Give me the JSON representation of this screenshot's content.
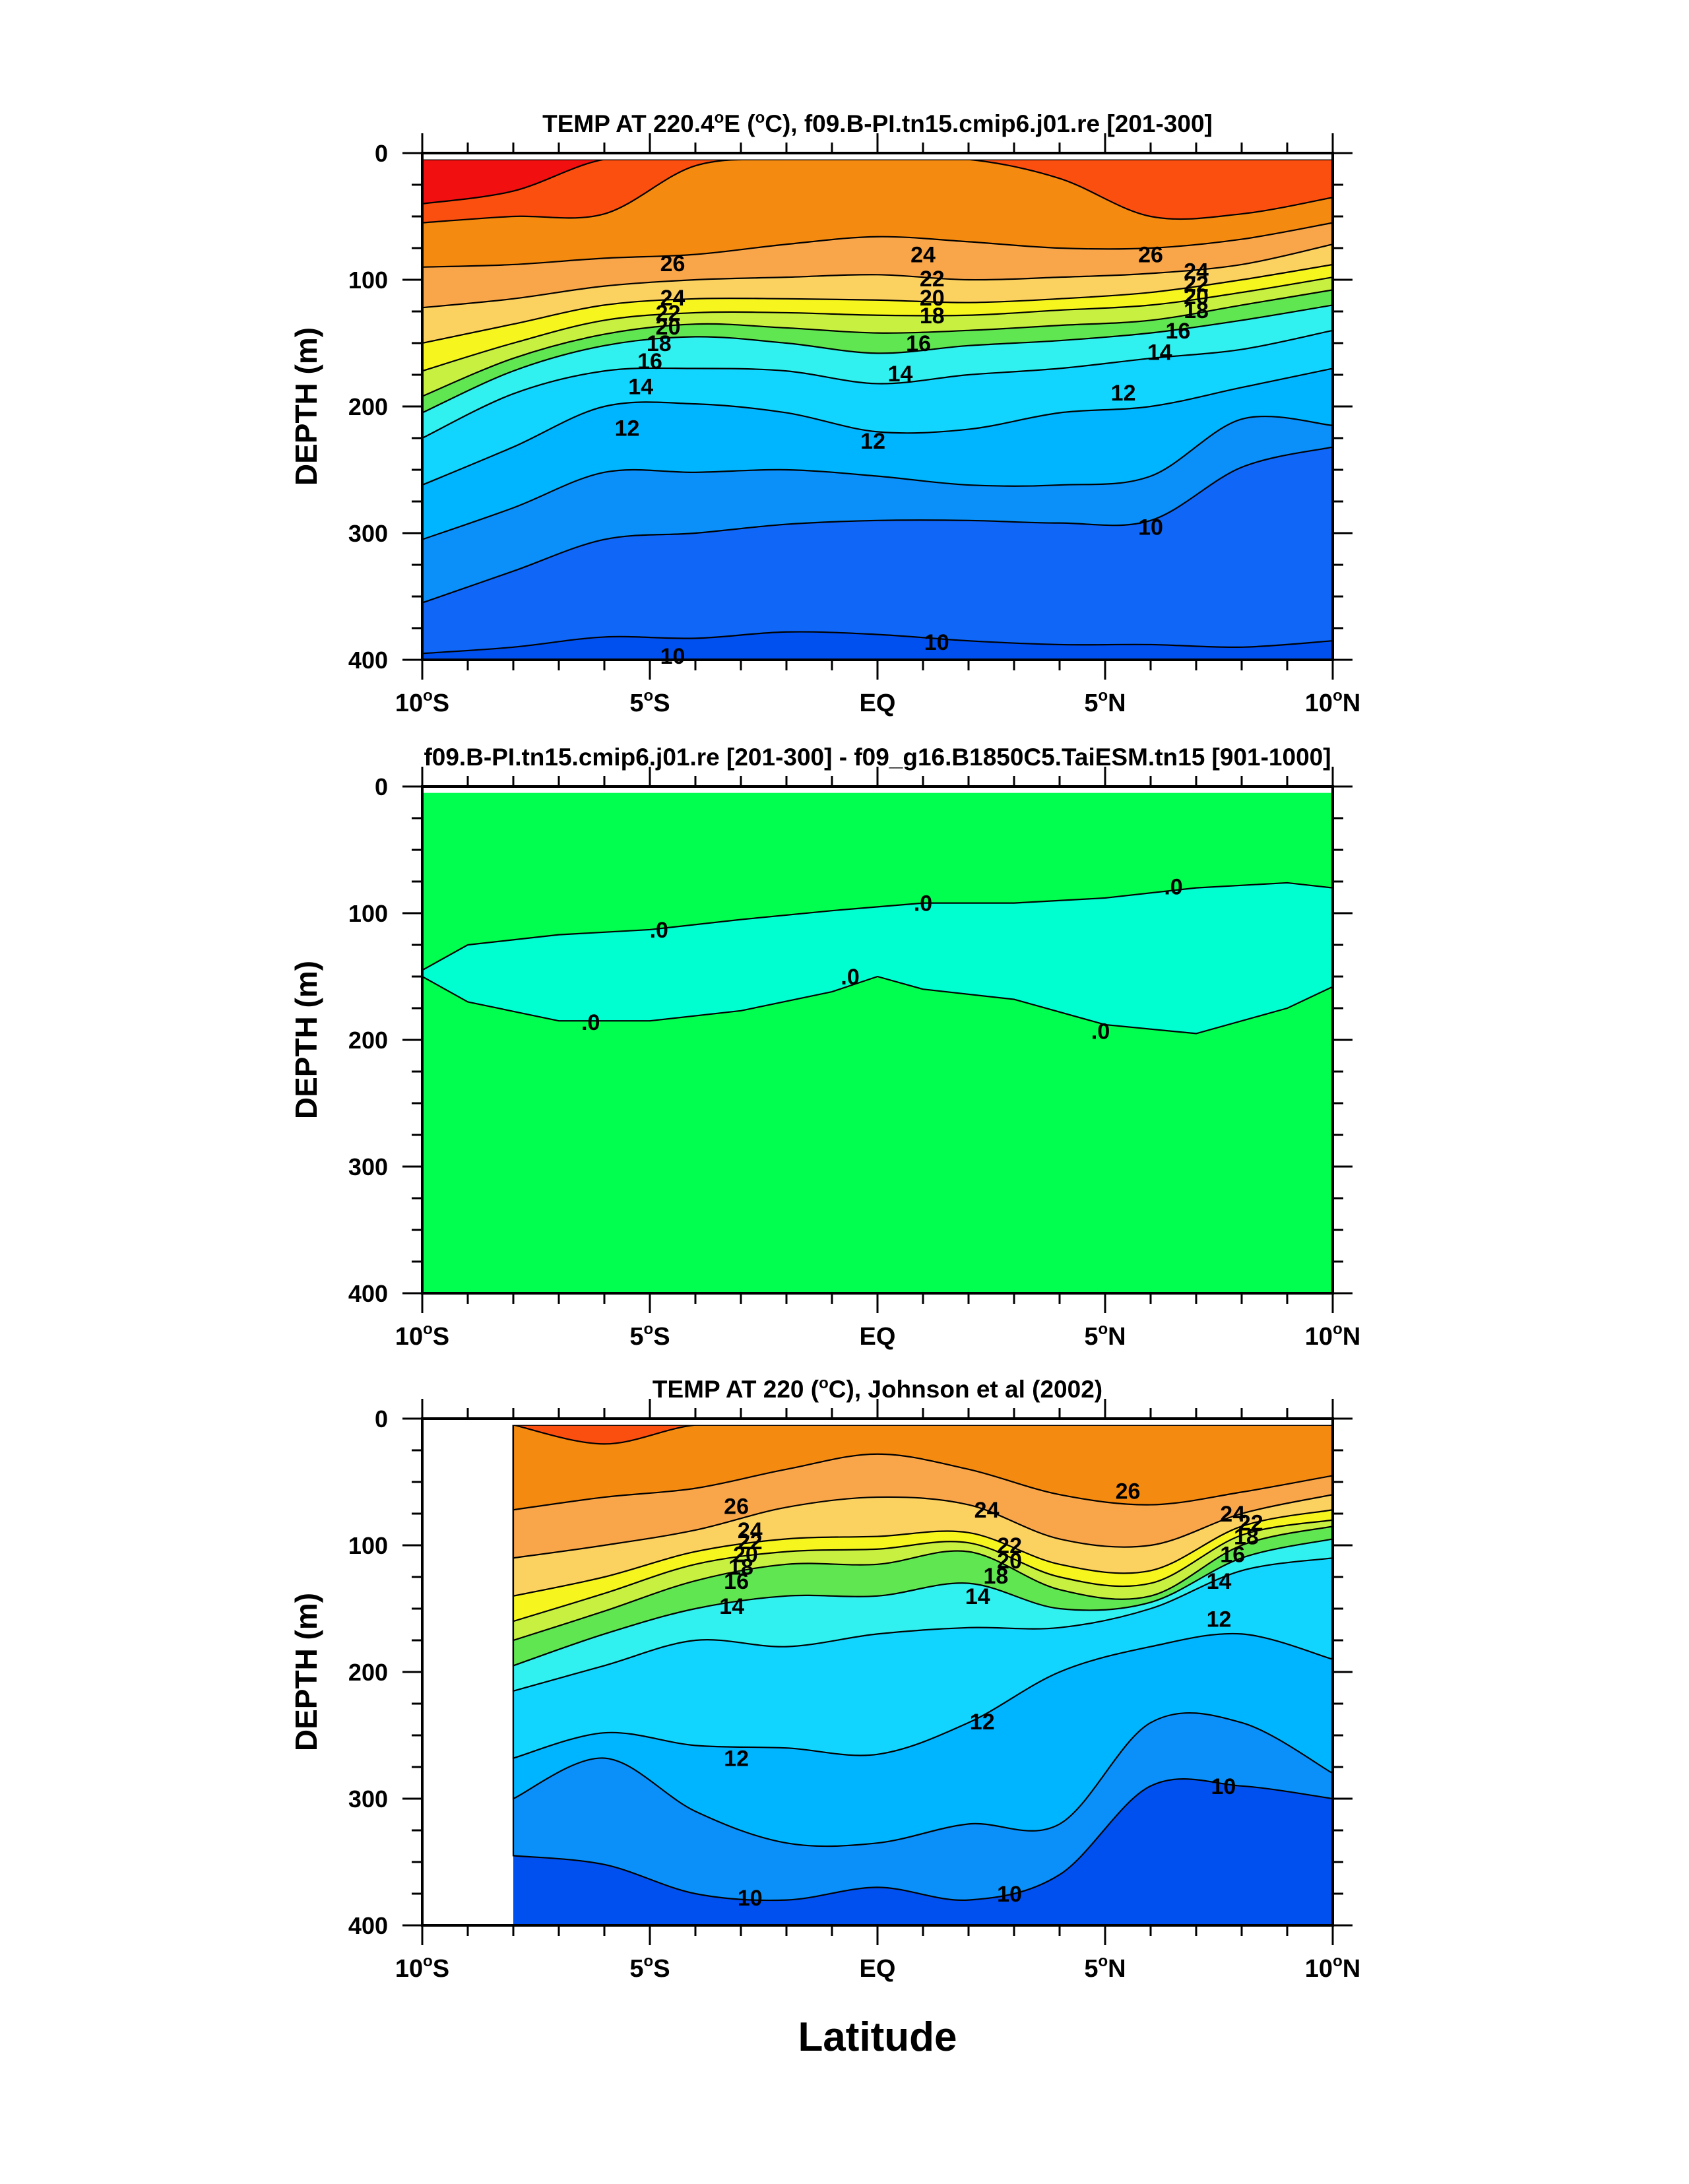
{
  "figure": {
    "xlabel": "Latitude",
    "ylabel": "DEPTH (m)"
  },
  "chart_data": [
    {
      "type": "contour",
      "title": "TEMP AT 220.4°E (°C), f09.B-PI.tn15.cmip6.j01.re [201-300]",
      "title_parts": {
        "pre": "TEMP AT 220.4",
        "deg": "o",
        "mid1": "E (",
        "deg2": "o",
        "post": "C), f09.B-PI.tn15.cmip6.j01.re [201-300]"
      },
      "xlabel": "",
      "ylabel": "DEPTH (m)",
      "xlim": [
        -10,
        10
      ],
      "ylim": [
        400,
        0
      ],
      "x_ticks": [
        -10,
        -5,
        0,
        5,
        10
      ],
      "x_tick_labels": [
        {
          "num": "10",
          "deg": "o",
          "hem": "S"
        },
        {
          "num": "5",
          "deg": "o",
          "hem": "S"
        },
        {
          "num": "EQ",
          "deg": "",
          "hem": ""
        },
        {
          "num": "5",
          "deg": "o",
          "hem": "N"
        },
        {
          "num": "10",
          "deg": "o",
          "hem": "N"
        }
      ],
      "y_ticks": [
        0,
        100,
        200,
        300,
        400
      ],
      "y_tick_labels": [
        "0",
        "100",
        "200",
        "300",
        "400"
      ],
      "x_data_range": [
        -10,
        10
      ],
      "fill_levels": [
        {
          "color": "#0050f0",
          "depth_top": [
            395,
            390,
            382,
            383,
            378,
            380,
            385,
            388,
            388,
            390,
            385
          ]
        },
        {
          "color": "#0f66f7",
          "depth_top": [
            355,
            330,
            305,
            300,
            293,
            290,
            290,
            292,
            290,
            248,
            232
          ]
        },
        {
          "color": "#0a90f8",
          "depth_top": [
            305,
            280,
            252,
            252,
            250,
            255,
            262,
            262,
            255,
            210,
            215
          ]
        },
        {
          "color": "#00b5ff",
          "depth_top": [
            262,
            232,
            200,
            198,
            205,
            220,
            218,
            205,
            200,
            185,
            170
          ]
        },
        {
          "color": "#11d5ff",
          "depth_top": [
            225,
            190,
            172,
            170,
            172,
            182,
            175,
            170,
            162,
            155,
            140
          ]
        },
        {
          "color": "#30f0f0",
          "depth_top": [
            205,
            172,
            152,
            145,
            150,
            158,
            152,
            148,
            142,
            132,
            120
          ]
        },
        {
          "color": "#60e650",
          "depth_top": [
            192,
            162,
            143,
            135,
            138,
            142,
            140,
            136,
            132,
            120,
            108
          ]
        },
        {
          "color": "#c8f040",
          "depth_top": [
            172,
            150,
            132,
            126,
            126,
            128,
            128,
            124,
            120,
            110,
            98
          ]
        },
        {
          "color": "#f6f51e",
          "depth_top": [
            150,
            135,
            120,
            115,
            115,
            116,
            118,
            115,
            110,
            100,
            88
          ]
        },
        {
          "color": "#fbd160",
          "depth_top": [
            122,
            115,
            105,
            100,
            98,
            96,
            100,
            98,
            95,
            88,
            72
          ]
        },
        {
          "color": "#f9a64a",
          "depth_top": [
            90,
            88,
            83,
            80,
            72,
            66,
            70,
            75,
            75,
            68,
            55
          ]
        },
        {
          "color": "#f58a10",
          "depth_top": [
            55,
            50,
            48,
            10,
            5,
            5,
            5,
            20,
            50,
            48,
            35
          ]
        },
        {
          "color": "#fb4f10",
          "depth_top": [
            40,
            30,
            5,
            5,
            5,
            5,
            5,
            5,
            5,
            5,
            5
          ]
        },
        {
          "color": "#f20f0f",
          "depth_top": [
            5,
            5,
            5,
            5,
            5,
            5,
            5,
            5,
            5,
            5,
            5
          ]
        }
      ],
      "contour_labels": [
        {
          "text": "26",
          "x": -4.5,
          "y": 87
        },
        {
          "text": "24",
          "x": -4.5,
          "y": 114
        },
        {
          "text": "22",
          "x": -4.6,
          "y": 126
        },
        {
          "text": "20",
          "x": -4.6,
          "y": 137
        },
        {
          "text": "18",
          "x": -4.8,
          "y": 150
        },
        {
          "text": "16",
          "x": -5.0,
          "y": 164
        },
        {
          "text": "14",
          "x": -5.2,
          "y": 184
        },
        {
          "text": "12",
          "x": -5.5,
          "y": 217
        },
        {
          "text": "24",
          "x": 1.0,
          "y": 80
        },
        {
          "text": "22",
          "x": 1.2,
          "y": 99
        },
        {
          "text": "20",
          "x": 1.2,
          "y": 114
        },
        {
          "text": "18",
          "x": 1.2,
          "y": 128
        },
        {
          "text": "16",
          "x": 0.9,
          "y": 150
        },
        {
          "text": "14",
          "x": 0.5,
          "y": 174
        },
        {
          "text": "12",
          "x": -0.1,
          "y": 227
        },
        {
          "text": "26",
          "x": 6.0,
          "y": 80
        },
        {
          "text": "24",
          "x": 7.0,
          "y": 93
        },
        {
          "text": "22",
          "x": 7.0,
          "y": 103
        },
        {
          "text": "20",
          "x": 7.0,
          "y": 113
        },
        {
          "text": "18",
          "x": 7.0,
          "y": 124
        },
        {
          "text": "16",
          "x": 6.6,
          "y": 140
        },
        {
          "text": "14",
          "x": 6.2,
          "y": 157
        },
        {
          "text": "12",
          "x": 5.4,
          "y": 189
        },
        {
          "text": "10",
          "x": 6.0,
          "y": 295
        },
        {
          "text": "10",
          "x": 1.3,
          "y": 386
        },
        {
          "text": "10",
          "x": -4.5,
          "y": 397
        }
      ]
    },
    {
      "type": "contour",
      "title": "f09.B-PI.tn15.cmip6.j01.re [201-300] - f09_g16.B1850C5.TaiESM.tn15 [901-1000]",
      "xlabel": "",
      "ylabel": "DEPTH (m)",
      "xlim": [
        -10,
        10
      ],
      "ylim": [
        400,
        0
      ],
      "x_ticks": [
        -10,
        -5,
        0,
        5,
        10
      ],
      "x_tick_labels": [
        {
          "num": "10",
          "deg": "o",
          "hem": "S"
        },
        {
          "num": "5",
          "deg": "o",
          "hem": "S"
        },
        {
          "num": "EQ",
          "deg": "",
          "hem": ""
        },
        {
          "num": "5",
          "deg": "o",
          "hem": "N"
        },
        {
          "num": "10",
          "deg": "o",
          "hem": "N"
        }
      ],
      "y_ticks": [
        0,
        100,
        200,
        300,
        400
      ],
      "y_tick_labels": [
        "0",
        "100",
        "200",
        "300",
        "400"
      ],
      "background_color": "#00ff4f",
      "band": {
        "color": "#00ffd0",
        "x": [
          -10,
          -9,
          -7,
          -5,
          -3,
          -1,
          0,
          1,
          3,
          5,
          7,
          9,
          10
        ],
        "top": [
          145,
          125,
          117,
          113,
          105,
          98,
          95,
          92,
          92,
          88,
          80,
          76,
          80
        ],
        "bottom": [
          150,
          170,
          185,
          185,
          177,
          162,
          150,
          160,
          168,
          188,
          195,
          175,
          158
        ]
      },
      "contour_labels": [
        {
          "text": ".0",
          "x": -4.8,
          "y": 113
        },
        {
          "text": ".0",
          "x": 1.0,
          "y": 92
        },
        {
          "text": ".0",
          "x": 6.5,
          "y": 79
        },
        {
          "text": ".0",
          "x": -0.6,
          "y": 150
        },
        {
          "text": ".0",
          "x": -6.3,
          "y": 186
        },
        {
          "text": ".0",
          "x": 4.9,
          "y": 193
        }
      ]
    },
    {
      "type": "contour",
      "title": "TEMP AT 220 (°C), Johnson et al (2002)",
      "title_parts": {
        "pre": "TEMP AT 220 (",
        "deg": "o",
        "post": "C), Johnson et al (2002)"
      },
      "xlabel": "Latitude",
      "ylabel": "DEPTH (m)",
      "xlim": [
        -10,
        10
      ],
      "ylim": [
        400,
        0
      ],
      "x_ticks": [
        -10,
        -5,
        0,
        5,
        10
      ],
      "x_tick_labels": [
        {
          "num": "10",
          "deg": "o",
          "hem": "S"
        },
        {
          "num": "5",
          "deg": "o",
          "hem": "S"
        },
        {
          "num": "EQ",
          "deg": "",
          "hem": ""
        },
        {
          "num": "5",
          "deg": "o",
          "hem": "N"
        },
        {
          "num": "10",
          "deg": "o",
          "hem": "N"
        }
      ],
      "y_ticks": [
        0,
        100,
        200,
        300,
        400
      ],
      "y_tick_labels": [
        "0",
        "100",
        "200",
        "300",
        "400"
      ],
      "x_data_range": [
        -8,
        10
      ],
      "fill_levels": [
        {
          "color": "#0050f0",
          "depth_top": [
            345,
            352,
            375,
            380,
            370,
            380,
            360,
            290,
            290,
            300
          ]
        },
        {
          "color": "#0a90f8",
          "depth_top": [
            300,
            268,
            310,
            335,
            335,
            320,
            320,
            240,
            240,
            280
          ]
        },
        {
          "color": "#00b5ff",
          "depth_top": [
            268,
            248,
            258,
            260,
            265,
            240,
            200,
            180,
            170,
            190
          ]
        },
        {
          "color": "#11d5ff",
          "depth_top": [
            215,
            195,
            175,
            180,
            170,
            165,
            165,
            150,
            120,
            110
          ]
        },
        {
          "color": "#30f0f0",
          "depth_top": [
            195,
            170,
            150,
            140,
            140,
            130,
            150,
            145,
            110,
            95
          ]
        },
        {
          "color": "#60e650",
          "depth_top": [
            175,
            152,
            128,
            115,
            115,
            105,
            135,
            140,
            100,
            85
          ]
        },
        {
          "color": "#c8f040",
          "depth_top": [
            160,
            138,
            115,
            105,
            103,
            98,
            125,
            130,
            92,
            80
          ]
        },
        {
          "color": "#f6f51e",
          "depth_top": [
            140,
            125,
            105,
            95,
            93,
            90,
            115,
            120,
            85,
            72
          ]
        },
        {
          "color": "#fbd160",
          "depth_top": [
            110,
            100,
            88,
            70,
            62,
            68,
            95,
            100,
            75,
            60
          ]
        },
        {
          "color": "#f9a64a",
          "depth_top": [
            72,
            62,
            55,
            40,
            28,
            40,
            60,
            68,
            58,
            45
          ]
        },
        {
          "color": "#f58a10",
          "depth_top": [
            5,
            20,
            5,
            5,
            5,
            5,
            5,
            5,
            5,
            5
          ]
        },
        {
          "color": "#fb4f10",
          "depth_top": [
            5,
            5,
            5,
            5,
            5,
            5,
            5,
            5,
            5,
            5
          ]
        }
      ],
      "fill_levels_orange_red": {
        "color": "#fb4f10",
        "regions": "upper corners"
      },
      "contour_labels": [
        {
          "text": "26",
          "x": -3.1,
          "y": 69
        },
        {
          "text": "24",
          "x": 2.4,
          "y": 72
        },
        {
          "text": "26",
          "x": 5.5,
          "y": 57
        },
        {
          "text": "24",
          "x": -2.8,
          "y": 88
        },
        {
          "text": "22",
          "x": -2.8,
          "y": 97
        },
        {
          "text": "20",
          "x": -2.9,
          "y": 107
        },
        {
          "text": "18",
          "x": -3.0,
          "y": 117
        },
        {
          "text": "16",
          "x": -3.1,
          "y": 128
        },
        {
          "text": "14",
          "x": -3.2,
          "y": 148
        },
        {
          "text": "22",
          "x": 2.9,
          "y": 100
        },
        {
          "text": "20",
          "x": 2.9,
          "y": 112
        },
        {
          "text": "18",
          "x": 2.6,
          "y": 124
        },
        {
          "text": "14",
          "x": 2.2,
          "y": 140
        },
        {
          "text": "12",
          "x": 2.3,
          "y": 239
        },
        {
          "text": "12",
          "x": -3.1,
          "y": 268
        },
        {
          "text": "24",
          "x": 7.8,
          "y": 75
        },
        {
          "text": "22",
          "x": 8.2,
          "y": 82
        },
        {
          "text": "18",
          "x": 8.1,
          "y": 93
        },
        {
          "text": "16",
          "x": 7.8,
          "y": 107
        },
        {
          "text": "14",
          "x": 7.5,
          "y": 128
        },
        {
          "text": "12",
          "x": 7.5,
          "y": 158
        },
        {
          "text": "10",
          "x": 7.6,
          "y": 290
        },
        {
          "text": "10",
          "x": 2.9,
          "y": 375
        },
        {
          "text": "10",
          "x": -2.8,
          "y": 378
        }
      ]
    }
  ]
}
